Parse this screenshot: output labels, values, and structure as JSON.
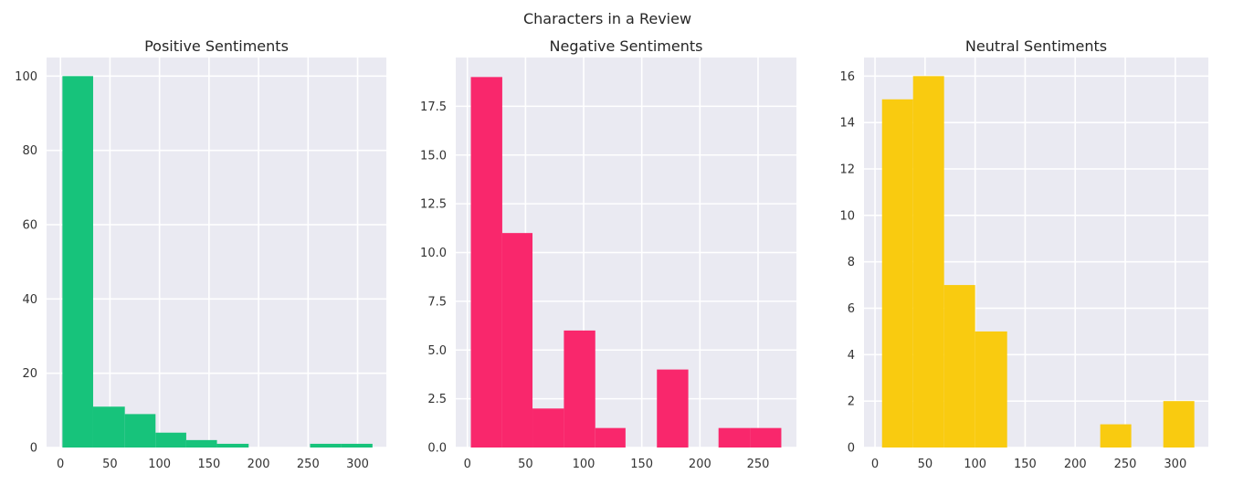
{
  "suptitle": "Characters in a Review",
  "chart_data": [
    {
      "type": "bar",
      "title": "Positive Sentiments",
      "color": "#17c37b",
      "xlim": [
        -14,
        329
      ],
      "ylim": [
        0,
        105
      ],
      "xticks": [
        0,
        50,
        100,
        150,
        200,
        250,
        300
      ],
      "xtick_labels": [
        "0",
        "50",
        "100",
        "150",
        "200",
        "250",
        "300"
      ],
      "yticks": [
        0,
        20,
        40,
        60,
        80,
        100
      ],
      "ytick_labels": [
        "0",
        "20",
        "40",
        "60",
        "80",
        "100"
      ],
      "bins": [
        {
          "x0": 2,
          "x1": 33,
          "value": 100
        },
        {
          "x0": 33,
          "x1": 65,
          "value": 11
        },
        {
          "x0": 65,
          "x1": 96,
          "value": 9
        },
        {
          "x0": 96,
          "x1": 127,
          "value": 4
        },
        {
          "x0": 127,
          "x1": 158,
          "value": 2
        },
        {
          "x0": 158,
          "x1": 190,
          "value": 1
        },
        {
          "x0": 190,
          "x1": 221,
          "value": 0
        },
        {
          "x0": 221,
          "x1": 252,
          "value": 0
        },
        {
          "x0": 252,
          "x1": 283,
          "value": 1
        },
        {
          "x0": 283,
          "x1": 315,
          "value": 1
        }
      ],
      "grid": true
    },
    {
      "type": "bar",
      "title": "Negative Sentiments",
      "color": "#f9276c",
      "xlim": [
        -10,
        283
      ],
      "ylim": [
        0,
        20
      ],
      "xticks": [
        0,
        50,
        100,
        150,
        200,
        250
      ],
      "xtick_labels": [
        "0",
        "50",
        "100",
        "150",
        "200",
        "250"
      ],
      "yticks": [
        0,
        2.5,
        5,
        7.5,
        10,
        12.5,
        15,
        17.5
      ],
      "ytick_labels": [
        "0.0",
        "2.5",
        "5.0",
        "7.5",
        "10.0",
        "12.5",
        "15.0",
        "17.5"
      ],
      "bins": [
        {
          "x0": 3,
          "x1": 30,
          "value": 19
        },
        {
          "x0": 30,
          "x1": 56,
          "value": 11
        },
        {
          "x0": 56,
          "x1": 83,
          "value": 2
        },
        {
          "x0": 83,
          "x1": 110,
          "value": 6
        },
        {
          "x0": 110,
          "x1": 136,
          "value": 1
        },
        {
          "x0": 136,
          "x1": 163,
          "value": 0
        },
        {
          "x0": 163,
          "x1": 190,
          "value": 4
        },
        {
          "x0": 190,
          "x1": 216,
          "value": 0
        },
        {
          "x0": 216,
          "x1": 243,
          "value": 1
        },
        {
          "x0": 243,
          "x1": 270,
          "value": 1
        }
      ],
      "grid": true
    },
    {
      "type": "bar",
      "title": "Neutral Sentiments",
      "color": "#f9cb10",
      "xlim": [
        -11,
        333
      ],
      "ylim": [
        0,
        16.8
      ],
      "xticks": [
        0,
        50,
        100,
        150,
        200,
        250,
        300
      ],
      "xtick_labels": [
        "0",
        "50",
        "100",
        "150",
        "200",
        "250",
        "300"
      ],
      "yticks": [
        0,
        2,
        4,
        6,
        8,
        10,
        12,
        14,
        16
      ],
      "ytick_labels": [
        "0",
        "2",
        "4",
        "6",
        "8",
        "10",
        "12",
        "14",
        "16"
      ],
      "bins": [
        {
          "x0": 7,
          "x1": 38,
          "value": 15
        },
        {
          "x0": 38,
          "x1": 69,
          "value": 16
        },
        {
          "x0": 69,
          "x1": 100,
          "value": 7
        },
        {
          "x0": 100,
          "x1": 132,
          "value": 5
        },
        {
          "x0": 132,
          "x1": 163,
          "value": 0
        },
        {
          "x0": 163,
          "x1": 194,
          "value": 0
        },
        {
          "x0": 194,
          "x1": 225,
          "value": 0
        },
        {
          "x0": 225,
          "x1": 256,
          "value": 1
        },
        {
          "x0": 256,
          "x1": 288,
          "value": 0
        },
        {
          "x0": 288,
          "x1": 319,
          "value": 2
        }
      ],
      "grid": true
    }
  ]
}
